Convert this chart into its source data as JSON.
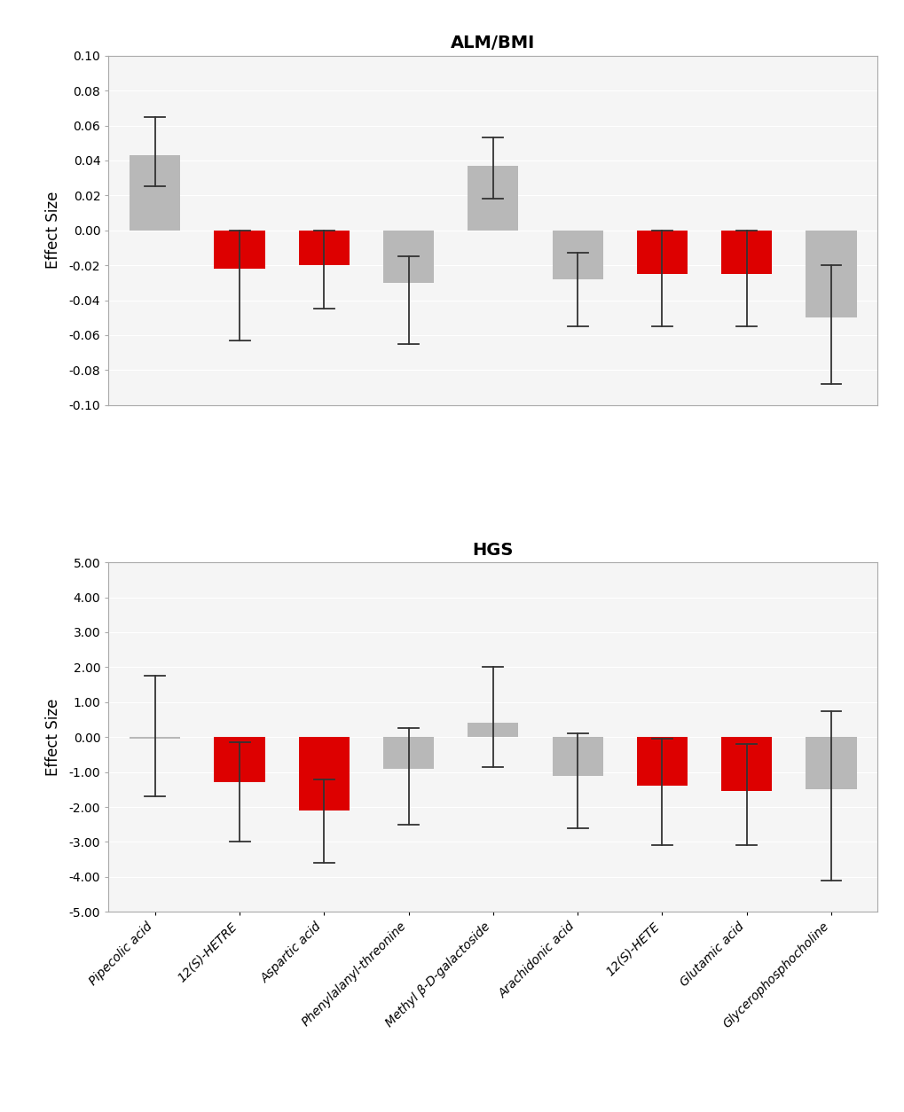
{
  "categories": [
    "Pipecolic acid",
    "12(S)-HETRE",
    "Aspartic acid",
    "Phenylalanyl-threonine",
    "Methyl β-D-galactoside",
    "Arachidonic acid",
    "12(S)-HETE",
    "Glutamic acid",
    "Glycerophosphocholine"
  ],
  "alm_bmi": {
    "values": [
      0.043,
      -0.022,
      -0.02,
      -0.03,
      0.037,
      -0.028,
      -0.025,
      -0.025,
      -0.05
    ],
    "ci_low": [
      0.025,
      -0.063,
      -0.045,
      -0.065,
      0.018,
      -0.055,
      -0.055,
      -0.055,
      -0.088
    ],
    "ci_high": [
      0.065,
      0.0,
      0.0,
      -0.015,
      0.053,
      -0.013,
      0.0,
      0.0,
      -0.02
    ],
    "colors": [
      "#b8b8b8",
      "#dd0000",
      "#dd0000",
      "#b8b8b8",
      "#b8b8b8",
      "#b8b8b8",
      "#dd0000",
      "#dd0000",
      "#b8b8b8"
    ],
    "title": "ALM/BMI",
    "ylabel": "Effect Size",
    "ylim": [
      -0.1,
      0.1
    ],
    "yticks": [
      -0.1,
      -0.08,
      -0.06,
      -0.04,
      -0.02,
      0.0,
      0.02,
      0.04,
      0.06,
      0.08,
      0.1
    ],
    "ytick_labels": [
      "-0.10",
      "-0.08",
      "-0.06",
      "-0.04",
      "-0.02",
      "0.00",
      "0.02",
      "0.04",
      "0.06",
      "0.08",
      "0.10"
    ]
  },
  "hgs": {
    "values": [
      -0.05,
      -1.3,
      -2.1,
      -0.9,
      0.4,
      -1.1,
      -1.4,
      -1.55,
      -1.5
    ],
    "ci_low": [
      -1.7,
      -3.0,
      -3.6,
      -2.5,
      -0.85,
      -2.6,
      -3.1,
      -3.1,
      -4.1
    ],
    "ci_high": [
      1.75,
      -0.15,
      -1.2,
      0.25,
      2.0,
      0.1,
      -0.05,
      -0.2,
      0.75
    ],
    "colors": [
      "#b8b8b8",
      "#dd0000",
      "#dd0000",
      "#b8b8b8",
      "#b8b8b8",
      "#b8b8b8",
      "#dd0000",
      "#dd0000",
      "#b8b8b8"
    ],
    "title": "HGS",
    "ylabel": "Effect Size",
    "ylim": [
      -5.0,
      5.0
    ],
    "yticks": [
      -5.0,
      -4.0,
      -3.0,
      -2.0,
      -1.0,
      0.0,
      1.0,
      2.0,
      3.0,
      4.0,
      5.0
    ],
    "ytick_labels": [
      "-5.00",
      "-4.00",
      "-3.00",
      "-2.00",
      "-1.00",
      "0.00",
      "1.00",
      "2.00",
      "3.00",
      "4.00",
      "5.00"
    ]
  },
  "background_color": "#ffffff",
  "plot_bg_color": "#f5f5f5",
  "grid_color": "#ffffff",
  "bar_width": 0.6,
  "title_fontsize": 14,
  "label_fontsize": 12,
  "tick_fontsize": 10,
  "xtick_fontsize": 10,
  "errorbar_color": "#333333",
  "capsize": 4,
  "linewidth": 1.3
}
